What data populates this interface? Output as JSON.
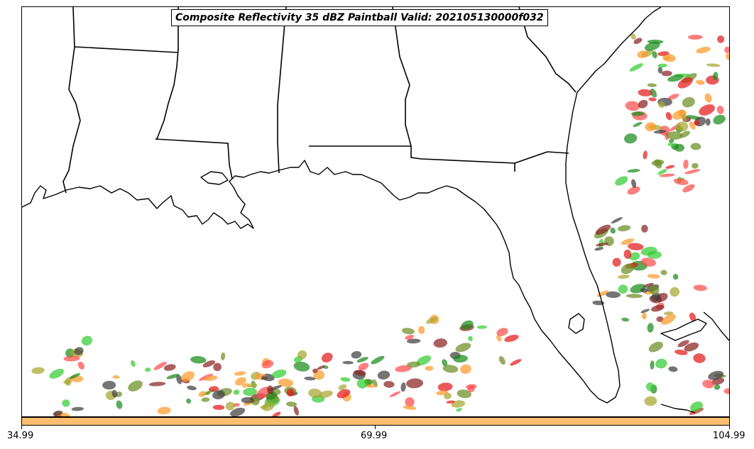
{
  "title": "Composite Reflectivity 35 dBZ Paintball Valid: 202105130000f032",
  "colorbar": {
    "color": "#fdbf6f",
    "ticks": [
      "34.99",
      "69.99",
      "104.99"
    ]
  },
  "member_colors": [
    "#e31a1c",
    "#fb9a29",
    "#33cc33",
    "#a6a630",
    "#8b2323",
    "#404040",
    "#1a8a1a",
    "#ff4c4c",
    "#6b8e23"
  ],
  "map": {
    "projection": "lambert-conformal",
    "region": "US Southeast / Gulf of Mexico",
    "features": [
      "coastlines",
      "state-borders"
    ]
  }
}
